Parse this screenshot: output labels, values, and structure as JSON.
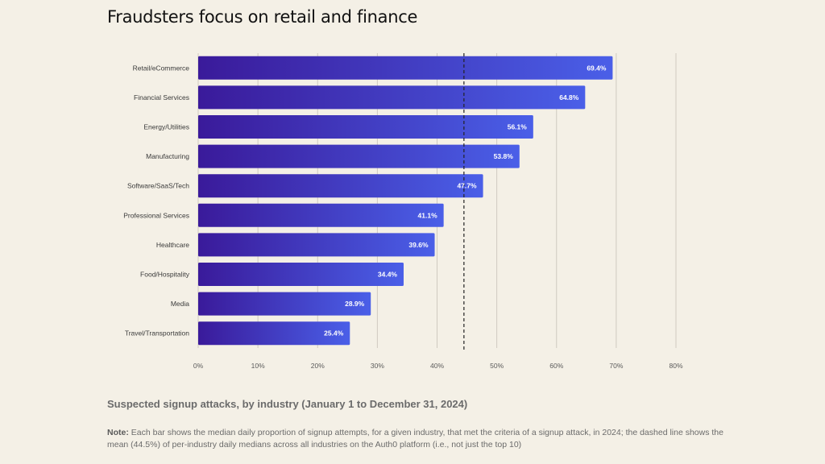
{
  "title": "Fraudsters focus on retail and finance",
  "subtitle": "Suspected signup attacks, by industry (January 1 to December 31, 2024)",
  "note": {
    "label": "Note:",
    "text": "Each bar shows the median daily proportion of signup attempts, for a given industry, that met the criteria of a signup attack, in 2024; the dashed line shows the mean (44.5%) of per-industry daily medians across all industries on the Auth0 platform (i.e., not just the top 10)"
  },
  "colors": {
    "background": "#f4f0e6",
    "bar_start": "#3a1a9a",
    "bar_end": "#4a5fe8",
    "grid": "#cfcac0",
    "mean_line": "#222222"
  },
  "chart_data": {
    "type": "bar",
    "orientation": "horizontal",
    "categories": [
      "Retail/eCommerce",
      "Financial Services",
      "Energy/Utilities",
      "Manufacturing",
      "Software/SaaS/Tech",
      "Professional Services",
      "Healthcare",
      "Food/Hospitality",
      "Media",
      "Travel/Transportation"
    ],
    "values": [
      69.4,
      64.8,
      56.1,
      53.8,
      47.7,
      41.1,
      39.6,
      34.4,
      28.9,
      25.4
    ],
    "value_labels": [
      "69.4%",
      "64.8%",
      "56.1%",
      "53.8%",
      "47.7%",
      "41.1%",
      "39.6%",
      "34.4%",
      "28.9%",
      "25.4%"
    ],
    "xlim": [
      0,
      80
    ],
    "xticks": [
      0,
      10,
      20,
      30,
      40,
      50,
      60,
      70,
      80
    ],
    "xtick_labels": [
      "0%",
      "10%",
      "20%",
      "30%",
      "40%",
      "50%",
      "60%",
      "70%",
      "80%"
    ],
    "reference_line": {
      "value": 44.5,
      "style": "dashed"
    },
    "grid": true,
    "xlabel": "",
    "ylabel": ""
  }
}
